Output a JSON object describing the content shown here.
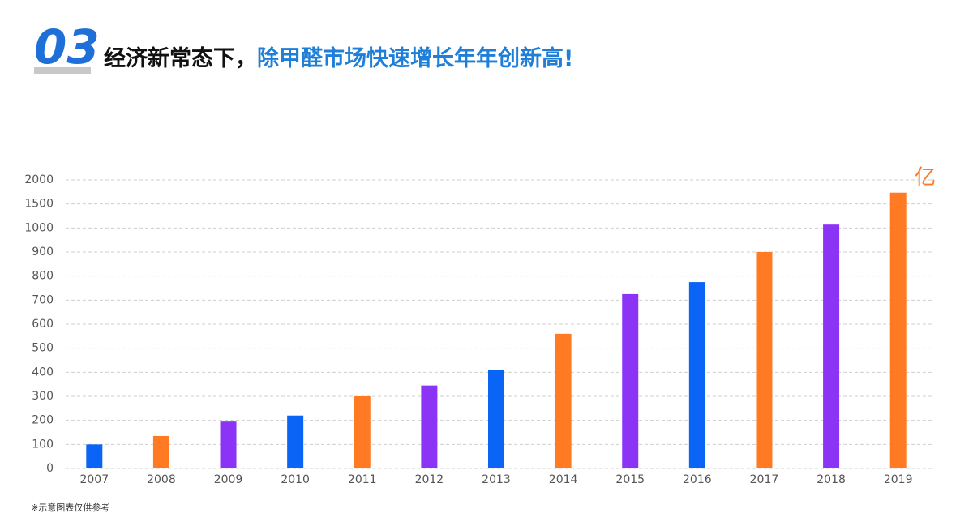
{
  "badge": "03",
  "heading": {
    "lead": "经济新常态下，",
    "highlight": "除甲醛市场快速增长年年创新高!"
  },
  "footnote": "※示意图表仅供参考",
  "chart_data": {
    "type": "bar",
    "unit": "亿",
    "categories": [
      "2007",
      "2008",
      "2009",
      "2010",
      "2011",
      "2012",
      "2013",
      "2014",
      "2015",
      "2016",
      "2017",
      "2018",
      "2019"
    ],
    "values": [
      100,
      135,
      195,
      220,
      300,
      345,
      410,
      560,
      725,
      775,
      900,
      1070,
      1735
    ],
    "colors": [
      "#0a64f5",
      "#ff7a22",
      "#8b34f5",
      "#0a64f5",
      "#ff7a22",
      "#8b34f5",
      "#0a64f5",
      "#ff7a22",
      "#8b34f5",
      "#0a64f5",
      "#ff7a22",
      "#8b34f5",
      "#ff7a22"
    ],
    "ylim": [
      0,
      2000
    ],
    "yticks": [
      0,
      100,
      200,
      300,
      400,
      500,
      600,
      700,
      800,
      900,
      1000,
      1500,
      2000
    ],
    "grid": true
  }
}
